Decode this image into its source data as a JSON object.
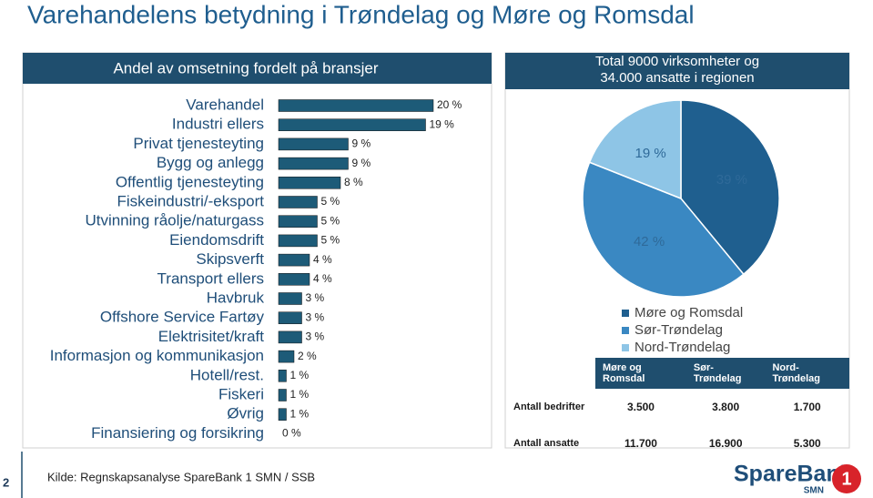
{
  "slide": {
    "title": "Varehandelens betydning i Trøndelag og Møre og Romsdal",
    "page_number": "2",
    "source": "Kilde: Regnskapsanalyse SpareBank 1 SMN / SSB",
    "logo": {
      "name": "SpareBank",
      "number": "1",
      "sub": "SMN"
    }
  },
  "chart_data": [
    {
      "type": "hbar",
      "title": "Andel av omsetning fordelt på bransjer",
      "categories": [
        "Varehandel",
        "Industri ellers",
        "Privat tjenesteyting",
        "Bygg og anlegg",
        "Offentlig tjenesteyting",
        "Fiskeindustri/-eksport",
        "Utvinning råolje/naturgass",
        "Eiendomsdrift",
        "Skipsverft",
        "Transport ellers",
        "Havbruk",
        "Offshore Service Fartøy",
        "Elektrisitet/kraft",
        "Informasjon og kommunikasjon",
        "Hotell/rest.",
        "Fiskeri",
        "Øvrig",
        "Finansiering og forsikring"
      ],
      "values": [
        20,
        19,
        9,
        9,
        8,
        5,
        5,
        5,
        4,
        4,
        3,
        3,
        3,
        2,
        1,
        1,
        1,
        0
      ],
      "value_labels": [
        "20 %",
        "19 %",
        "9 %",
        "9 %",
        "8 %",
        "5 %",
        "5 %",
        "5 %",
        "4 %",
        "4 %",
        "3 %",
        "3 %",
        "3 %",
        "2 %",
        "1 %",
        "1 %",
        "1 %",
        "0 %"
      ],
      "color": "#1d5b78"
    },
    {
      "type": "pie",
      "title": "Total 9000 virksomheter og 34.000 ansatte i regionen",
      "categories": [
        "Møre og Romsdal",
        "Sør-Trøndelag",
        "Nord-Trøndelag"
      ],
      "values": [
        39,
        42,
        19
      ],
      "value_labels": [
        "39 %",
        "42 %",
        "19 %"
      ],
      "colors": [
        "#1f5f8f",
        "#3a88c2",
        "#8ec5e6"
      ]
    }
  ],
  "table": {
    "header": [
      "Møre og Romsdal",
      "Sør-Trøndelag",
      "Nord-Trøndelag"
    ],
    "rows": [
      [
        "Antall bedrifter",
        "3.500",
        "3.800",
        "1.700"
      ],
      [
        "Antall ansatte",
        "11.700",
        "16.900",
        "5.300"
      ]
    ]
  }
}
